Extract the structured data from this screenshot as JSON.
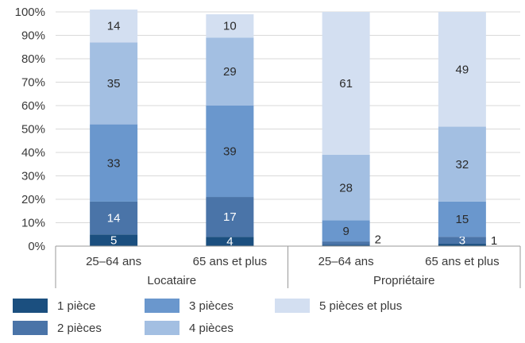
{
  "chart_data": {
    "type": "bar",
    "stacked": true,
    "title": "",
    "xlabel": "",
    "ylabel": "",
    "ylim": [
      0,
      100
    ],
    "yticks": [
      "0%",
      "10%",
      "20%",
      "30%",
      "40%",
      "50%",
      "60%",
      "70%",
      "80%",
      "90%",
      "100%"
    ],
    "grid": true,
    "legend_position": "bottom",
    "groups": [
      {
        "label": "Locataire",
        "categories": [
          "25–64 ans",
          "65 ans et plus"
        ]
      },
      {
        "label": "Propriétaire",
        "categories": [
          "25–64 ans",
          "65 ans et plus"
        ]
      }
    ],
    "categories": [
      "25–64 ans",
      "65 ans et plus",
      "25–64 ans",
      "65 ans et plus"
    ],
    "series": [
      {
        "name": "1 pièce",
        "color": "#1b4f7f",
        "values": [
          5,
          4,
          0.5,
          1
        ],
        "labels": [
          "5",
          "4",
          "",
          "1"
        ]
      },
      {
        "name": "2 pièces",
        "color": "#4a74a8",
        "values": [
          14,
          17,
          1.5,
          3
        ],
        "labels": [
          "14",
          "17",
          "2",
          "3"
        ]
      },
      {
        "name": "3 pièces",
        "color": "#6a97cd",
        "values": [
          33,
          39,
          9,
          15
        ],
        "labels": [
          "33",
          "39",
          "9",
          "15"
        ]
      },
      {
        "name": "4 pièces",
        "color": "#a3bfe2",
        "values": [
          35,
          29,
          28,
          32
        ],
        "labels": [
          "35",
          "29",
          "28",
          "32"
        ]
      },
      {
        "name": "5 pièces et plus",
        "color": "#d3dff1",
        "values": [
          14,
          10,
          61,
          49
        ],
        "labels": [
          "14",
          "10",
          "61",
          "49"
        ]
      }
    ]
  }
}
